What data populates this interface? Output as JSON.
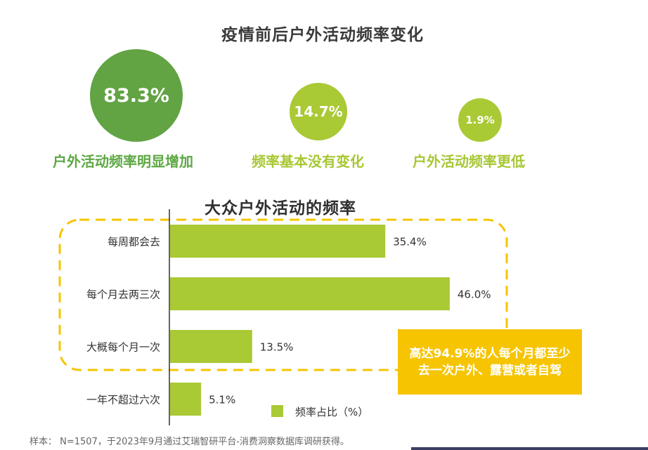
{
  "top_title": "疫情前后户外活动频率变化",
  "circles": [
    {
      "value": "83.3%",
      "label": "户外活动频率明显增加",
      "color": "#62a344"
    },
    {
      "value": "14.7%",
      "label": "频率基本没有变化",
      "color": "#a9c935"
    },
    {
      "value": "1.9%",
      "label": "户外活动频率更低",
      "color": "#a9c935"
    }
  ],
  "callout": "高达94.9%的人每个月都至少去一次户外、露营或者自驾",
  "footnote": "样本： N=1507，于2023年9月通过艾瑞智研平台-消费洞察数据库调研获得。",
  "colors": {
    "bar": "#a9c935",
    "highlight_border": "#f6c400",
    "axis": "#333333"
  },
  "chart_data": {
    "type": "bar",
    "orientation": "horizontal",
    "title": "大众户外活动的频率",
    "categories": [
      "每周都会去",
      "每个月去两三次",
      "大概每个月一次",
      "一年不超过六次"
    ],
    "series": [
      {
        "name": "频率占比（%）",
        "values": [
          35.4,
          46.0,
          13.5,
          5.1
        ]
      }
    ],
    "value_labels": [
      "35.4%",
      "46.0%",
      "13.5%",
      "5.1%"
    ],
    "xlim": [
      0,
      50
    ],
    "grid": false,
    "legend": "bottom"
  }
}
